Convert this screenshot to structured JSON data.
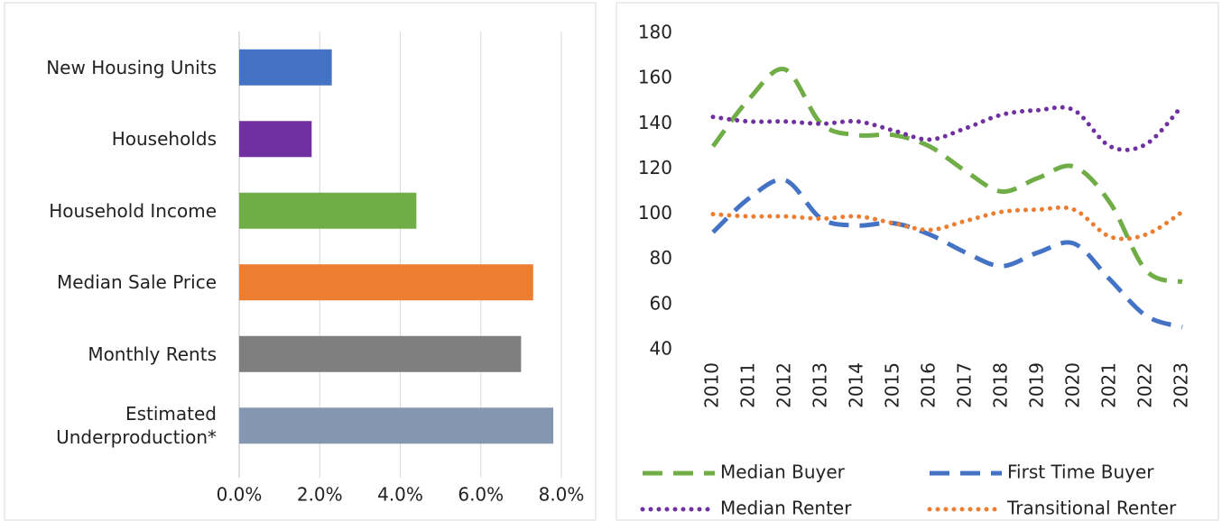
{
  "chart_data": [
    {
      "type": "barh",
      "categories": [
        "New Housing Units",
        "Households",
        "Household Income",
        "Median Sale Price",
        "Monthly Rents",
        "Estimated Underproduction*"
      ],
      "values": [
        2.3,
        1.8,
        4.4,
        7.3,
        7.0,
        7.8
      ],
      "colors": [
        "#4472c4",
        "#7030a0",
        "#70ad47",
        "#ed7d31",
        "#7f7f7f",
        "#8497b0"
      ],
      "xlim": [
        0,
        8
      ],
      "xticks": [
        {
          "value": 0,
          "label": "0.0%"
        },
        {
          "value": 2,
          "label": "2.0%"
        },
        {
          "value": 4,
          "label": "4.0%"
        },
        {
          "value": 6,
          "label": "6.0%"
        },
        {
          "value": 8,
          "label": "8.0%"
        }
      ],
      "grid": true
    },
    {
      "type": "line",
      "categories": [
        "2010",
        "2011",
        "2012",
        "2013",
        "2014",
        "2015",
        "2016",
        "2017",
        "2018",
        "2019",
        "2020",
        "2021",
        "2022",
        "2023"
      ],
      "series": [
        {
          "name": "Median Buyer",
          "color": "#70ad47",
          "style": "dashed",
          "values": [
            130,
            151,
            164,
            140,
            135,
            135,
            130,
            119,
            110,
            116,
            121,
            105,
            75,
            70
          ]
        },
        {
          "name": "First Time Buyer",
          "color": "#4472c4",
          "style": "dashed",
          "values": [
            92,
            107,
            115,
            98,
            95,
            96,
            91,
            83,
            77,
            83,
            87,
            71,
            55,
            50
          ]
        },
        {
          "name": "Median Renter",
          "color": "#7030a0",
          "style": "dotted",
          "values": [
            143,
            141,
            141,
            140,
            141,
            137,
            133,
            138,
            144,
            146,
            146,
            130,
            131,
            148
          ]
        },
        {
          "name": "Transitional Renter",
          "color": "#ed7d31",
          "style": "dotted",
          "values": [
            100,
            99,
            99,
            98,
            99,
            96,
            93,
            97,
            101,
            102,
            102,
            90,
            91,
            101
          ]
        }
      ],
      "ylim": [
        40,
        180
      ],
      "yticks": [
        40,
        60,
        80,
        100,
        120,
        140,
        160,
        180
      ],
      "grid": false
    }
  ]
}
